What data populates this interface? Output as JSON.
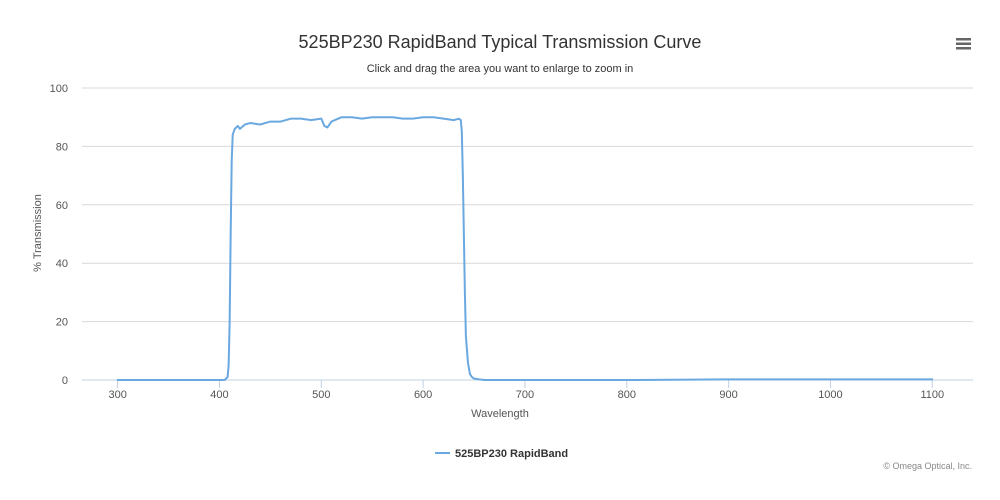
{
  "chart_data": {
    "type": "line",
    "title": "525BP230 RapidBand Typical Transmission Curve",
    "subtitle": "Click and drag the area you want to enlarge to zoom in",
    "xlabel": "Wavelength",
    "ylabel": "% Transmission",
    "xlim": [
      265,
      1140
    ],
    "ylim": [
      0,
      100
    ],
    "x_ticks": [
      300,
      400,
      500,
      600,
      700,
      800,
      900,
      1000,
      1100
    ],
    "y_ticks": [
      0,
      20,
      40,
      60,
      80,
      100
    ],
    "grid": "horizontal",
    "legend_position": "bottom-center",
    "series": [
      {
        "name": "525BP230 RapidBand",
        "color": "#6aa8e0",
        "x": [
          300,
          350,
          405,
          408,
          409,
          410,
          411,
          412,
          413,
          415,
          418,
          420,
          425,
          430,
          440,
          450,
          460,
          470,
          480,
          490,
          500,
          503,
          506,
          510,
          520,
          530,
          540,
          550,
          560,
          570,
          580,
          590,
          600,
          610,
          620,
          630,
          635,
          637,
          638,
          639,
          640,
          641,
          642,
          644,
          646,
          648,
          650,
          655,
          660,
          680,
          700,
          800,
          900,
          1000,
          1100
        ],
        "y": [
          0,
          0,
          0,
          1,
          5,
          20,
          50,
          75,
          84,
          86,
          87,
          86,
          87.5,
          88,
          87.5,
          88.5,
          88.5,
          89.5,
          89.5,
          89,
          89.5,
          87,
          86.5,
          88.5,
          90,
          90,
          89.5,
          90,
          90,
          90,
          89.5,
          89.5,
          90,
          90,
          89.5,
          89,
          89.5,
          89,
          85,
          70,
          50,
          30,
          15,
          6,
          2,
          1,
          0.5,
          0.2,
          0,
          0,
          0,
          0,
          0.2,
          0.2,
          0.2
        ]
      }
    ]
  },
  "credits": "© Omega Optical, Inc.",
  "menu_icon": "hamburger-menu-icon"
}
